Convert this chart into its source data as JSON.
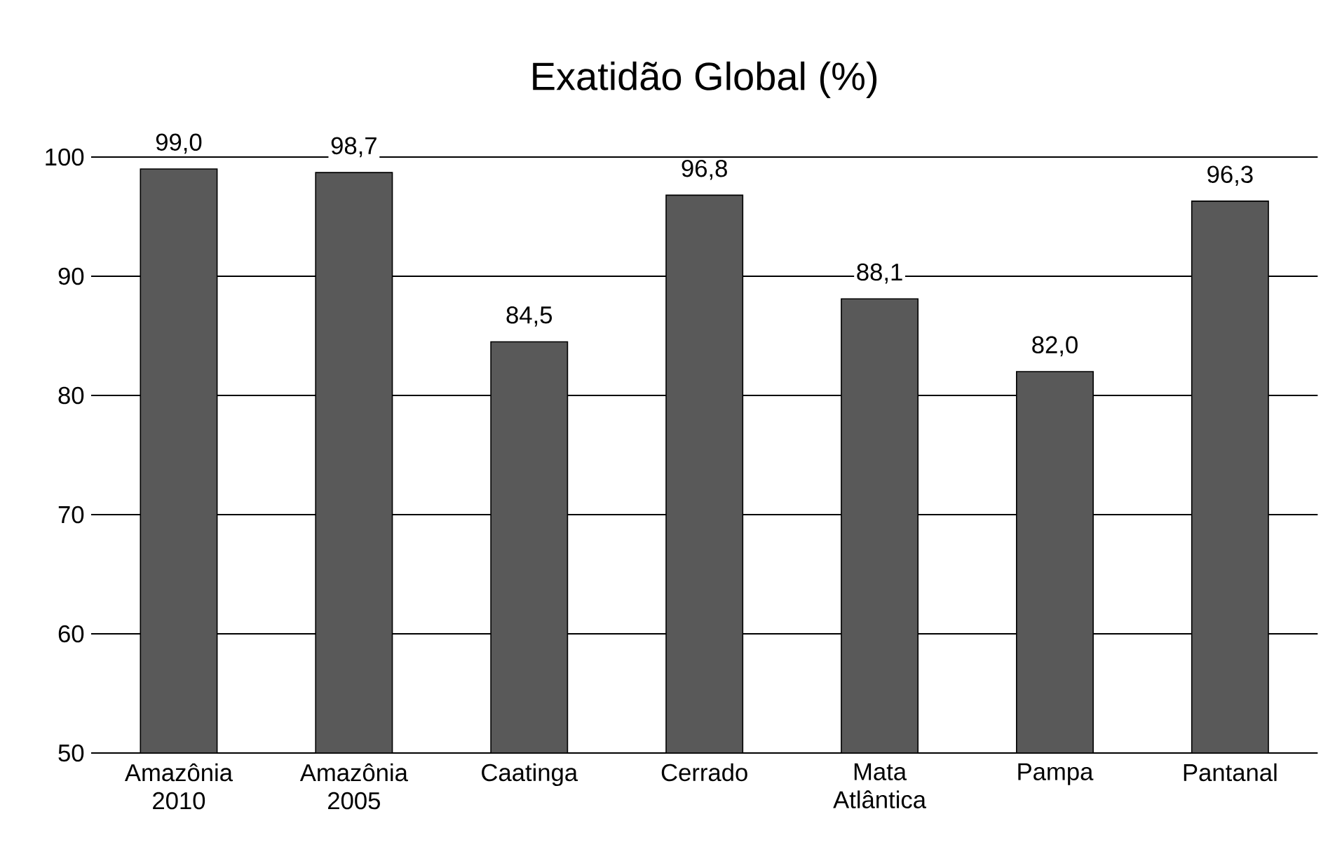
{
  "chart_data": {
    "type": "bar",
    "title": "Exatidão Global (%)",
    "categories": [
      "Amazônia 2010",
      "Amazônia 2005",
      "Caatinga",
      "Cerrado",
      "Mata Atlântica",
      "Pampa",
      "Pantanal"
    ],
    "values": [
      99.0,
      98.7,
      84.5,
      96.8,
      88.1,
      82.0,
      96.3
    ],
    "value_labels": [
      "99,0",
      "98,7",
      "84,5",
      "96,8",
      "88,1",
      "82,0",
      "96,3"
    ],
    "color": "#595959",
    "ylim": [
      50,
      100
    ],
    "yticks": [
      50,
      60,
      70,
      80,
      90,
      100
    ],
    "grid": "y"
  }
}
